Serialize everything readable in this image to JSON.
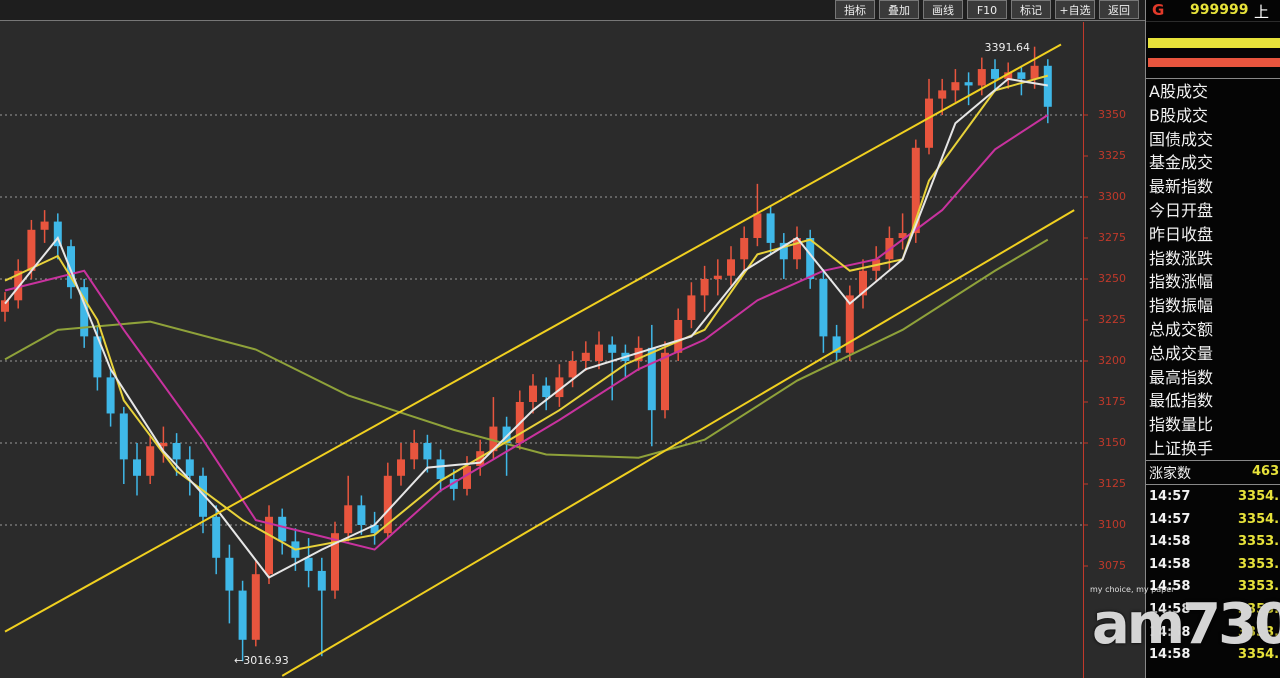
{
  "chart_data": {
    "type": "candlestick",
    "up_color": "#e8553e",
    "down_color": "#3fb8e8",
    "candles": [
      [
        3230,
        3242,
        3224,
        3237
      ],
      [
        3237,
        3262,
        3232,
        3255
      ],
      [
        3255,
        3286,
        3250,
        3280
      ],
      [
        3280,
        3292,
        3272,
        3285
      ],
      [
        3285,
        3290,
        3262,
        3270
      ],
      [
        3270,
        3274,
        3238,
        3245
      ],
      [
        3245,
        3250,
        3208,
        3215
      ],
      [
        3215,
        3222,
        3182,
        3190
      ],
      [
        3190,
        3196,
        3160,
        3168
      ],
      [
        3168,
        3172,
        3125,
        3140
      ],
      [
        3140,
        3150,
        3118,
        3130
      ],
      [
        3130,
        3155,
        3125,
        3148
      ],
      [
        3148,
        3160,
        3138,
        3150
      ],
      [
        3150,
        3156,
        3130,
        3140
      ],
      [
        3140,
        3148,
        3118,
        3130
      ],
      [
        3130,
        3135,
        3095,
        3105
      ],
      [
        3105,
        3112,
        3070,
        3080
      ],
      [
        3080,
        3088,
        3040,
        3060
      ],
      [
        3060,
        3066,
        3016.93,
        3030
      ],
      [
        3030,
        3078,
        3026,
        3070
      ],
      [
        3070,
        3112,
        3064,
        3105
      ],
      [
        3105,
        3110,
        3082,
        3090
      ],
      [
        3090,
        3098,
        3072,
        3080
      ],
      [
        3080,
        3092,
        3062,
        3072
      ],
      [
        3072,
        3080,
        3020,
        3060
      ],
      [
        3060,
        3102,
        3055,
        3095
      ],
      [
        3095,
        3130,
        3090,
        3112
      ],
      [
        3112,
        3118,
        3094,
        3100
      ],
      [
        3100,
        3108,
        3088,
        3095
      ],
      [
        3095,
        3138,
        3092,
        3130
      ],
      [
        3130,
        3150,
        3124,
        3140
      ],
      [
        3140,
        3158,
        3134,
        3150
      ],
      [
        3150,
        3155,
        3132,
        3140
      ],
      [
        3140,
        3146,
        3120,
        3128
      ],
      [
        3128,
        3134,
        3115,
        3122
      ],
      [
        3122,
        3142,
        3118,
        3136
      ],
      [
        3136,
        3152,
        3130,
        3145
      ],
      [
        3145,
        3178,
        3140,
        3160
      ],
      [
        3160,
        3166,
        3130,
        3150
      ],
      [
        3150,
        3182,
        3146,
        3175
      ],
      [
        3175,
        3192,
        3168,
        3185
      ],
      [
        3185,
        3190,
        3170,
        3178
      ],
      [
        3178,
        3198,
        3172,
        3190
      ],
      [
        3190,
        3206,
        3184,
        3200
      ],
      [
        3200,
        3212,
        3194,
        3205
      ],
      [
        3200,
        3218,
        3195,
        3210
      ],
      [
        3210,
        3215,
        3176,
        3205
      ],
      [
        3205,
        3210,
        3190,
        3200
      ],
      [
        3200,
        3215,
        3194,
        3208
      ],
      [
        3208,
        3222,
        3148,
        3170
      ],
      [
        3170,
        3212,
        3165,
        3205
      ],
      [
        3205,
        3232,
        3200,
        3225
      ],
      [
        3225,
        3248,
        3220,
        3240
      ],
      [
        3240,
        3258,
        3230,
        3250
      ],
      [
        3250,
        3262,
        3240,
        3252
      ],
      [
        3252,
        3270,
        3246,
        3262
      ],
      [
        3262,
        3282,
        3255,
        3275
      ],
      [
        3275,
        3308,
        3270,
        3290
      ],
      [
        3290,
        3295,
        3265,
        3272
      ],
      [
        3272,
        3278,
        3250,
        3262
      ],
      [
        3262,
        3282,
        3256,
        3275
      ],
      [
        3275,
        3280,
        3244,
        3250
      ],
      [
        3250,
        3256,
        3205,
        3215
      ],
      [
        3215,
        3222,
        3200,
        3205
      ],
      [
        3205,
        3246,
        3200,
        3240
      ],
      [
        3240,
        3262,
        3232,
        3255
      ],
      [
        3255,
        3270,
        3248,
        3262
      ],
      [
        3262,
        3282,
        3256,
        3275
      ],
      [
        3275,
        3290,
        3268,
        3278
      ],
      [
        3278,
        3335,
        3272,
        3330
      ],
      [
        3330,
        3372,
        3326,
        3360
      ],
      [
        3360,
        3372,
        3350,
        3365
      ],
      [
        3365,
        3378,
        3358,
        3370
      ],
      [
        3370,
        3376,
        3356,
        3368
      ],
      [
        3368,
        3385,
        3362,
        3378
      ],
      [
        3378,
        3384,
        3364,
        3372
      ],
      [
        3372,
        3382,
        3366,
        3376
      ],
      [
        3376,
        3380,
        3362,
        3372
      ],
      [
        3372,
        3391.64,
        3366,
        3380
      ],
      [
        3380,
        3384,
        3345,
        3355
      ]
    ],
    "series": [
      {
        "color": "#8fa23a",
        "x": [
          0,
          4,
          11,
          19,
          26,
          34,
          41,
          48,
          53,
          60,
          68,
          75,
          79
        ],
        "values": [
          3201,
          3219,
          3224,
          3207,
          3179,
          3158,
          3143,
          3141,
          3152,
          3188,
          3219,
          3255,
          3274
        ]
      },
      {
        "color": "#c8329e",
        "x": [
          0,
          6,
          9,
          15,
          19,
          25,
          28,
          33,
          37,
          42,
          48,
          53,
          57,
          62,
          66,
          71,
          75,
          79
        ],
        "values": [
          3243,
          3255,
          3219,
          3152,
          3103,
          3091,
          3085,
          3121,
          3140,
          3164,
          3195,
          3213,
          3237,
          3255,
          3262,
          3292,
          3329,
          3350
        ]
      },
      {
        "color": "#e8d23a",
        "x": [
          0,
          4,
          7,
          9,
          13,
          18,
          22,
          28,
          33,
          37,
          42,
          47,
          53,
          57,
          61,
          64,
          68,
          70,
          75,
          79
        ],
        "values": [
          3249,
          3264,
          3225,
          3176,
          3133,
          3103,
          3085,
          3094,
          3127,
          3146,
          3170,
          3198,
          3219,
          3265,
          3274,
          3255,
          3262,
          3310,
          3365,
          3374
        ]
      },
      {
        "color": "#e6e6e6",
        "x": [
          0,
          4,
          8,
          12,
          16,
          20,
          24,
          28,
          32,
          36,
          40,
          44,
          48,
          52,
          56,
          60,
          64,
          68,
          72,
          76,
          79
        ],
        "values": [
          3235,
          3275,
          3195,
          3145,
          3110,
          3068,
          3085,
          3100,
          3135,
          3138,
          3170,
          3195,
          3205,
          3215,
          3255,
          3275,
          3235,
          3262,
          3345,
          3372,
          3368
        ]
      },
      {
        "color": "#f0d020",
        "x": [
          0,
          80
        ],
        "values": [
          3035,
          3393
        ]
      },
      {
        "color": "#f0d020",
        "x": [
          21,
          81
        ],
        "values": [
          3008,
          3292
        ]
      }
    ],
    "ylim": [
      3006.7,
      3406.7
    ],
    "yticks": [
      3075,
      3100,
      3125,
      3150,
      3175,
      3200,
      3225,
      3250,
      3275,
      3300,
      3325,
      3350
    ],
    "grid": true,
    "annotations": [
      "3391.64",
      "←3016.93"
    ]
  },
  "ui": {
    "toolbar": [
      "指标",
      "叠加",
      "画线",
      "F10",
      "标记",
      "+自选",
      "返回"
    ],
    "icon": "G",
    "symbol": "999999",
    "market": "上证",
    "panel_labels": [
      "A股成交",
      "B股成交",
      "国债成交",
      "基金成交",
      "最新指数",
      "今日开盘",
      "昨日收盘",
      "指数涨跌",
      "指数涨幅",
      "指数振幅",
      "总成交额",
      "总成交量",
      "最高指数",
      "最低指数",
      "指数量比",
      "上证换手"
    ],
    "advance_label": "涨家数",
    "advance_value": "463",
    "trades": [
      {
        "time": "14:57",
        "price": "3354."
      },
      {
        "time": "14:57",
        "price": "3354."
      },
      {
        "time": "14:58",
        "price": "3353."
      },
      {
        "time": "14:58",
        "price": "3353."
      },
      {
        "time": "14:58",
        "price": "3353."
      },
      {
        "time": "14:58",
        "price": "3353."
      },
      {
        "time": "14:58",
        "price": "3353."
      },
      {
        "time": "14:58",
        "price": "3354."
      }
    ],
    "watermark": "am730",
    "tagline": "my choice, my paper"
  }
}
